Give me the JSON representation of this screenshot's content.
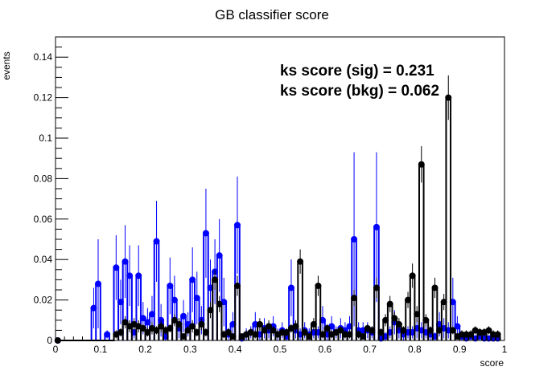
{
  "chart_data": {
    "type": "scatter",
    "title": "GB classifier score",
    "xlabel": "score",
    "ylabel": "events",
    "xlim": [
      0,
      1
    ],
    "ylim": [
      0,
      0.15
    ],
    "x_ticks": [
      "0",
      "0.1",
      "0.2",
      "0.3",
      "0.4",
      "0.5",
      "0.6",
      "0.7",
      "0.8",
      "0.9",
      "1"
    ],
    "y_ticks": [
      "0",
      "0.02",
      "0.04",
      "0.06",
      "0.08",
      "0.1",
      "0.12",
      "0.14"
    ],
    "grid": false,
    "annotations": [
      "ks score (sig) = 0.231",
      "ks score (bkg) = 0.062"
    ],
    "colors": {
      "sig": "#000000",
      "bkg": "#0000ff"
    },
    "series": [
      {
        "key": "sig",
        "x": [
          0.005,
          0.135,
          0.145,
          0.155,
          0.165,
          0.175,
          0.185,
          0.195,
          0.205,
          0.215,
          0.225,
          0.235,
          0.245,
          0.255,
          0.265,
          0.275,
          0.285,
          0.295,
          0.305,
          0.315,
          0.325,
          0.335,
          0.345,
          0.355,
          0.365,
          0.375,
          0.385,
          0.395,
          0.405,
          0.415,
          0.425,
          0.435,
          0.445,
          0.455,
          0.465,
          0.475,
          0.485,
          0.495,
          0.505,
          0.515,
          0.525,
          0.535,
          0.545,
          0.555,
          0.565,
          0.575,
          0.585,
          0.595,
          0.605,
          0.615,
          0.625,
          0.635,
          0.645,
          0.655,
          0.665,
          0.675,
          0.685,
          0.695,
          0.705,
          0.715,
          0.725,
          0.735,
          0.745,
          0.755,
          0.765,
          0.775,
          0.785,
          0.795,
          0.805,
          0.815,
          0.825,
          0.835,
          0.845,
          0.855,
          0.865,
          0.875,
          0.885,
          0.895,
          0.905,
          0.915,
          0.925,
          0.935,
          0.945,
          0.955,
          0.965,
          0.975,
          0.985
        ],
        "values": [
          0,
          0.003,
          0.004,
          0.009,
          0.007,
          0.008,
          0.007,
          0.006,
          0.004,
          0.006,
          0.005,
          0.007,
          0.005,
          0.006,
          0.01,
          0.008,
          0.002,
          0.005,
          0.007,
          0.004,
          0.008,
          0.004,
          0.015,
          0.03,
          0.018,
          0.003,
          0.004,
          0.002,
          0.027,
          0.002,
          0.003,
          0.004,
          0.003,
          0.008,
          0.005,
          0.007,
          0.005,
          0.003,
          0.004,
          0.004,
          0.006,
          0.007,
          0.039,
          0.004,
          0.002,
          0.008,
          0.027,
          0.003,
          0.006,
          0.003,
          0.004,
          0.005,
          0.003,
          0.003,
          0.021,
          0.003,
          0.002,
          0.006,
          0.005,
          0.026,
          0.004,
          0.01,
          0.018,
          0.011,
          0.008,
          0.005,
          0.02,
          0.032,
          0.013,
          0.087,
          0.01,
          0.005,
          0.026,
          0.005,
          0.019,
          0.12,
          0.005,
          0.002,
          0.003,
          0.003,
          0.003,
          0.005,
          0.004,
          0.004,
          0.005,
          0.003,
          0.003
        ],
        "errors": [
          0,
          0.002,
          0.002,
          0.003,
          0.003,
          0.003,
          0.003,
          0.002,
          0.002,
          0.003,
          0.002,
          0.003,
          0.002,
          0.002,
          0.003,
          0.003,
          0.001,
          0.002,
          0.003,
          0.002,
          0.003,
          0.002,
          0.004,
          0.005,
          0.004,
          0.002,
          0.002,
          0.001,
          0.005,
          0.001,
          0.002,
          0.002,
          0.002,
          0.003,
          0.002,
          0.003,
          0.002,
          0.002,
          0.002,
          0.002,
          0.002,
          0.003,
          0.006,
          0.002,
          0.001,
          0.003,
          0.005,
          0.002,
          0.002,
          0.002,
          0.002,
          0.002,
          0.002,
          0.002,
          0.004,
          0.002,
          0.001,
          0.002,
          0.002,
          0.005,
          0.002,
          0.003,
          0.004,
          0.003,
          0.003,
          0.002,
          0.004,
          0.006,
          0.004,
          0.009,
          0.003,
          0.002,
          0.005,
          0.002,
          0.004,
          0.011,
          0.002,
          0.001,
          0.002,
          0.002,
          0.002,
          0.002,
          0.002,
          0.002,
          0.002,
          0.002,
          0.002
        ]
      },
      {
        "key": "bkg",
        "x": [
          0.005,
          0.085,
          0.095,
          0.115,
          0.135,
          0.145,
          0.155,
          0.165,
          0.175,
          0.185,
          0.195,
          0.205,
          0.215,
          0.225,
          0.235,
          0.245,
          0.255,
          0.265,
          0.275,
          0.285,
          0.295,
          0.305,
          0.315,
          0.325,
          0.335,
          0.345,
          0.355,
          0.365,
          0.375,
          0.385,
          0.395,
          0.405,
          0.415,
          0.425,
          0.435,
          0.445,
          0.455,
          0.465,
          0.475,
          0.485,
          0.495,
          0.505,
          0.515,
          0.525,
          0.535,
          0.545,
          0.555,
          0.565,
          0.575,
          0.585,
          0.595,
          0.605,
          0.615,
          0.625,
          0.635,
          0.645,
          0.655,
          0.665,
          0.675,
          0.685,
          0.695,
          0.705,
          0.715,
          0.725,
          0.735,
          0.745,
          0.755,
          0.765,
          0.775,
          0.785,
          0.795,
          0.805,
          0.815,
          0.825,
          0.835,
          0.845,
          0.855,
          0.865,
          0.875,
          0.885,
          0.895,
          0.905,
          0.915,
          0.925,
          0.935,
          0.945,
          0.955,
          0.965,
          0.975,
          0.985
        ],
        "values": [
          0,
          0.016,
          0.028,
          0.003,
          0.036,
          0.019,
          0.039,
          0.032,
          0.004,
          0.032,
          0.011,
          0.009,
          0.013,
          0.049,
          0.01,
          0.002,
          0.027,
          0.02,
          0.006,
          0.012,
          0.008,
          0.03,
          0.021,
          0.01,
          0.053,
          0.026,
          0.034,
          0.042,
          0.019,
          0.003,
          0.008,
          0.057,
          0.001,
          0.003,
          0.004,
          0.008,
          0.003,
          0.006,
          0.005,
          0.007,
          0.003,
          0.005,
          0.002,
          0.026,
          0.005,
          0.003,
          0.005,
          0.003,
          0.004,
          0.004,
          0.01,
          0.003,
          0.007,
          0.004,
          0.006,
          0.005,
          0.007,
          0.05,
          0.005,
          0.005,
          0.005,
          0.004,
          0.056,
          0.001,
          0.002,
          0.004,
          0.009,
          0.005,
          0.003,
          0.004,
          0.004,
          0.006,
          0.005,
          0.004,
          0.003,
          0.002,
          0.008,
          0.006,
          0.005,
          0.019,
          0.007,
          0.002,
          0.001,
          0.002,
          0.001,
          0.002,
          0.001,
          0.001,
          0.001,
          0.001
        ],
        "errors": [
          0,
          0.01,
          0.022,
          0.002,
          0.016,
          0.011,
          0.018,
          0.015,
          0.003,
          0.015,
          0.008,
          0.007,
          0.009,
          0.02,
          0.008,
          0.002,
          0.014,
          0.012,
          0.005,
          0.008,
          0.006,
          0.016,
          0.013,
          0.007,
          0.022,
          0.014,
          0.016,
          0.018,
          0.012,
          0.003,
          0.006,
          0.024,
          0.001,
          0.003,
          0.003,
          0.006,
          0.003,
          0.005,
          0.004,
          0.005,
          0.003,
          0.004,
          0.002,
          0.014,
          0.004,
          0.003,
          0.004,
          0.003,
          0.003,
          0.003,
          0.007,
          0.003,
          0.005,
          0.003,
          0.005,
          0.004,
          0.005,
          0.043,
          0.004,
          0.004,
          0.004,
          0.003,
          0.037,
          0.001,
          0.002,
          0.003,
          0.006,
          0.004,
          0.003,
          0.003,
          0.003,
          0.005,
          0.004,
          0.003,
          0.003,
          0.002,
          0.006,
          0.005,
          0.004,
          0.012,
          0.005,
          0.002,
          0.001,
          0.002,
          0.001,
          0.002,
          0.001,
          0.001,
          0.001,
          0.001
        ]
      }
    ]
  }
}
